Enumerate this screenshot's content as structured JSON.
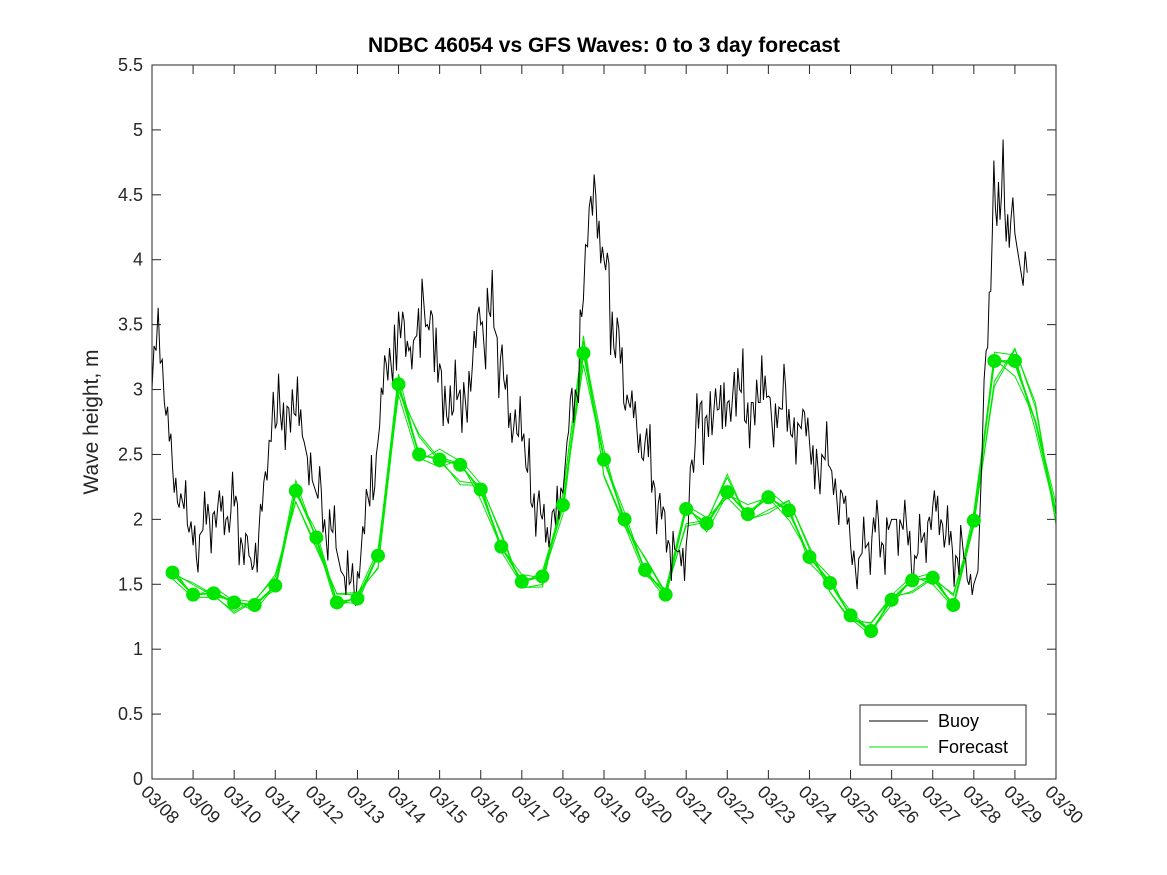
{
  "chart_data": {
    "type": "line",
    "title": "NDBC 46054 vs GFS Waves: 0 to 3 day forecast",
    "xlabel": "",
    "ylabel": "Wave height, m",
    "x_unit": "days since 03/08",
    "xlim": [
      0,
      22
    ],
    "ylim": [
      0,
      5.5
    ],
    "yticks": [
      0,
      0.5,
      1,
      1.5,
      2,
      2.5,
      3,
      3.5,
      4,
      4.5,
      5,
      5.5
    ],
    "ytick_labels": [
      "0",
      "0.5",
      "1",
      "1.5",
      "2",
      "2.5",
      "3",
      "3.5",
      "4",
      "4.5",
      "5",
      "5.5"
    ],
    "xtick_labels": [
      "03/08",
      "03/09",
      "03/10",
      "03/11",
      "03/12",
      "03/13",
      "03/14",
      "03/15",
      "03/16",
      "03/17",
      "03/18",
      "03/19",
      "03/20",
      "03/21",
      "03/22",
      "03/23",
      "03/24",
      "03/25",
      "03/26",
      "03/27",
      "03/28",
      "03/29",
      "03/30"
    ],
    "legend": {
      "position": "bottom-right",
      "entries": [
        {
          "name": "Buoy",
          "color": "#000000"
        },
        {
          "name": "Forecast",
          "color": "#00e600"
        }
      ]
    },
    "series": [
      {
        "name": "Buoy",
        "color": "#000000",
        "x": [
          0,
          0.1,
          0.2,
          0.3,
          0.5,
          0.7,
          0.9,
          1.0,
          1.2,
          1.4,
          1.6,
          1.8,
          2.0,
          2.2,
          2.4,
          2.6,
          2.8,
          2.9,
          3.0,
          3.2,
          3.5,
          3.7,
          3.9,
          4.0,
          4.2,
          4.4,
          4.6,
          4.8,
          5.0,
          5.3,
          5.5,
          5.7,
          5.9,
          6.0,
          6.1,
          6.25,
          6.4,
          6.7,
          7.0,
          7.3,
          7.5,
          7.8,
          8.0,
          8.2,
          8.4,
          8.6,
          8.8,
          9.0,
          9.1,
          9.3,
          9.5,
          9.7,
          9.9,
          10.0,
          10.1,
          10.3,
          10.5,
          10.6,
          10.8,
          11.0,
          11.2,
          11.4,
          11.6,
          11.8,
          12.0,
          12.2,
          12.4,
          12.6,
          12.8,
          13.0,
          13.1,
          13.3,
          13.5,
          13.8,
          14.0,
          14.3,
          14.5,
          14.8,
          15.0,
          15.3,
          15.5,
          15.8,
          16.0,
          16.3,
          16.5,
          16.8,
          17.0,
          17.2,
          17.4,
          17.6,
          17.8,
          18.0,
          18.2,
          18.4,
          18.6,
          18.8,
          19.0,
          19.2,
          19.4,
          19.6,
          19.8,
          20.0,
          20.1,
          20.2,
          20.3,
          20.45,
          20.6,
          20.75,
          20.9,
          21.0,
          21.1,
          21.2,
          21.3
        ],
        "values": [
          3.0,
          3.3,
          3.2,
          2.9,
          2.4,
          2.2,
          1.9,
          1.8,
          1.9,
          2.0,
          2.1,
          2.0,
          2.1,
          1.8,
          1.7,
          1.9,
          2.3,
          2.6,
          2.7,
          2.9,
          2.8,
          2.6,
          2.3,
          2.2,
          2.0,
          1.9,
          1.6,
          1.5,
          1.6,
          2.1,
          2.6,
          3.2,
          3.5,
          3.6,
          3.6,
          3.3,
          3.4,
          3.5,
          3.2,
          2.8,
          3.0,
          3.2,
          3.5,
          3.6,
          3.4,
          3.0,
          2.7,
          2.6,
          2.4,
          2.2,
          2.0,
          1.9,
          2.0,
          2.2,
          2.6,
          3.0,
          3.7,
          4.1,
          4.5,
          4.0,
          3.6,
          3.2,
          2.9,
          2.7,
          2.6,
          2.3,
          2.0,
          1.8,
          1.75,
          1.8,
          2.4,
          2.7,
          2.8,
          2.85,
          2.9,
          3.0,
          2.9,
          2.9,
          2.95,
          2.85,
          2.85,
          2.7,
          2.6,
          2.5,
          2.4,
          2.2,
          1.8,
          1.7,
          1.8,
          1.9,
          1.8,
          2.0,
          2.0,
          1.8,
          1.7,
          1.9,
          2.1,
          2.0,
          1.8,
          1.7,
          1.7,
          1.5,
          1.6,
          2.5,
          3.3,
          4.2,
          4.6,
          4.4,
          4.3,
          4.2,
          4.0,
          3.8,
          3.9
        ]
      },
      {
        "name": "Forecast",
        "color": "#00e600",
        "x": [
          0.5,
          1.0,
          1.5,
          2.0,
          2.5,
          3.0,
          3.5,
          4.0,
          4.5,
          5.0,
          5.5,
          6.0,
          6.5,
          7.0,
          7.5,
          8.0,
          8.5,
          9.0,
          9.5,
          10.0,
          10.5,
          11.0,
          11.5,
          12.0,
          12.5,
          13.0,
          13.5,
          14.0,
          14.5,
          15.0,
          15.5,
          16.0,
          16.5,
          17.0,
          17.5,
          18.0,
          18.5,
          19.0,
          19.5,
          20.0,
          20.5,
          21.0,
          21.5,
          22.0
        ],
        "values": [
          1.59,
          1.42,
          1.43,
          1.36,
          1.34,
          1.49,
          2.22,
          1.86,
          1.36,
          1.39,
          1.72,
          3.04,
          2.5,
          2.46,
          2.42,
          2.23,
          1.79,
          1.52,
          1.56,
          2.11,
          3.28,
          2.46,
          2.0,
          1.61,
          1.42,
          2.08,
          1.97,
          2.21,
          2.04,
          2.17,
          2.07,
          1.71,
          1.51,
          1.26,
          1.14,
          1.38,
          1.53,
          1.55,
          1.34,
          1.99,
          3.22,
          3.22,
          2.75,
          2.05
        ]
      }
    ],
    "forecast_markers": {
      "x": [
        0.5,
        1.0,
        1.5,
        2.0,
        2.5,
        3.0,
        3.5,
        4.0,
        4.5,
        5.0,
        5.5,
        6.0,
        6.5,
        7.0,
        7.5,
        8.0,
        8.5,
        9.0,
        9.5,
        10.0,
        10.5,
        11.0,
        11.5,
        12.0,
        12.5,
        13.0,
        13.5,
        14.0,
        14.5,
        15.0,
        15.5,
        16.0,
        16.5,
        17.0,
        17.5,
        18.0,
        18.5,
        19.0,
        19.5,
        20.0,
        20.5,
        21.0
      ],
      "values": [
        1.59,
        1.42,
        1.43,
        1.36,
        1.34,
        1.49,
        2.22,
        1.86,
        1.36,
        1.39,
        1.72,
        3.04,
        2.5,
        2.46,
        2.42,
        2.23,
        1.79,
        1.52,
        1.56,
        2.11,
        3.28,
        2.46,
        2.0,
        1.61,
        1.42,
        2.08,
        1.97,
        2.21,
        2.04,
        2.17,
        2.07,
        1.71,
        1.51,
        1.26,
        1.14,
        1.38,
        1.53,
        1.55,
        1.34,
        1.99,
        3.22,
        3.22
      ]
    }
  }
}
